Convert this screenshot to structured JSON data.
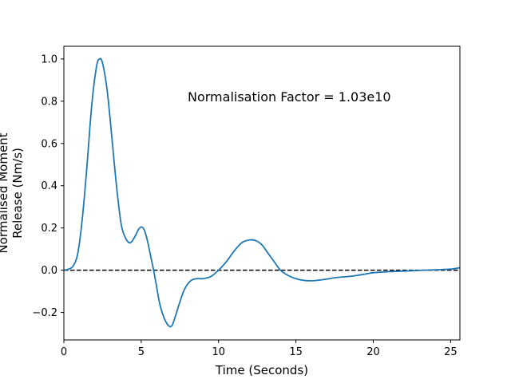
{
  "chart_data": {
    "type": "line",
    "title": "",
    "xlabel": "Time (Seconds)",
    "ylabel_lines": [
      "Normalised Moment",
      "Release (Nm/s)"
    ],
    "annotation": "Normalisation Factor = 1.03e10",
    "xlim": [
      0,
      25.6
    ],
    "ylim": [
      -0.33,
      1.06
    ],
    "xticks": [
      0,
      5,
      10,
      15,
      20,
      25
    ],
    "yticks": [
      -0.2,
      0.0,
      0.2,
      0.4,
      0.6,
      0.8,
      1.0
    ],
    "ytick_labels": [
      "−0.2",
      "0.0",
      "0.2",
      "0.4",
      "0.6",
      "0.8",
      "1.0"
    ],
    "grid": false,
    "reference_line": {
      "y": 0,
      "style": "dashed",
      "color": "#000000"
    },
    "series": [
      {
        "color": "#1f77b4",
        "x": [
          0,
          0.3,
          0.6,
          0.9,
          1.2,
          1.5,
          1.8,
          2.1,
          2.3,
          2.5,
          2.8,
          3.1,
          3.4,
          3.7,
          4.0,
          4.3,
          4.6,
          4.8,
          5.0,
          5.2,
          5.4,
          5.6,
          5.8,
          6.0,
          6.2,
          6.5,
          6.8,
          7.0,
          7.2,
          7.5,
          7.8,
          8.2,
          8.6,
          9.0,
          9.5,
          10.0,
          10.5,
          11.0,
          11.5,
          12.0,
          12.4,
          12.8,
          13.2,
          13.6,
          14.0,
          14.5,
          15.0,
          15.5,
          16.0,
          16.5,
          17.0,
          17.5,
          18.0,
          18.5,
          19.0,
          19.5,
          20.0,
          21.0,
          22.0,
          23.0,
          24.0,
          25.0,
          25.6
        ],
        "y": [
          0.0,
          0.005,
          0.02,
          0.08,
          0.25,
          0.5,
          0.78,
          0.96,
          1.0,
          0.98,
          0.85,
          0.63,
          0.4,
          0.22,
          0.15,
          0.13,
          0.16,
          0.19,
          0.205,
          0.19,
          0.14,
          0.07,
          0.0,
          -0.08,
          -0.16,
          -0.23,
          -0.265,
          -0.26,
          -0.22,
          -0.15,
          -0.09,
          -0.05,
          -0.04,
          -0.04,
          -0.03,
          0.0,
          0.04,
          0.09,
          0.13,
          0.143,
          0.14,
          0.12,
          0.08,
          0.04,
          0.0,
          -0.025,
          -0.04,
          -0.048,
          -0.05,
          -0.047,
          -0.042,
          -0.036,
          -0.032,
          -0.029,
          -0.024,
          -0.018,
          -0.012,
          -0.007,
          -0.004,
          -0.001,
          0.002,
          0.005,
          0.012
        ]
      }
    ]
  }
}
